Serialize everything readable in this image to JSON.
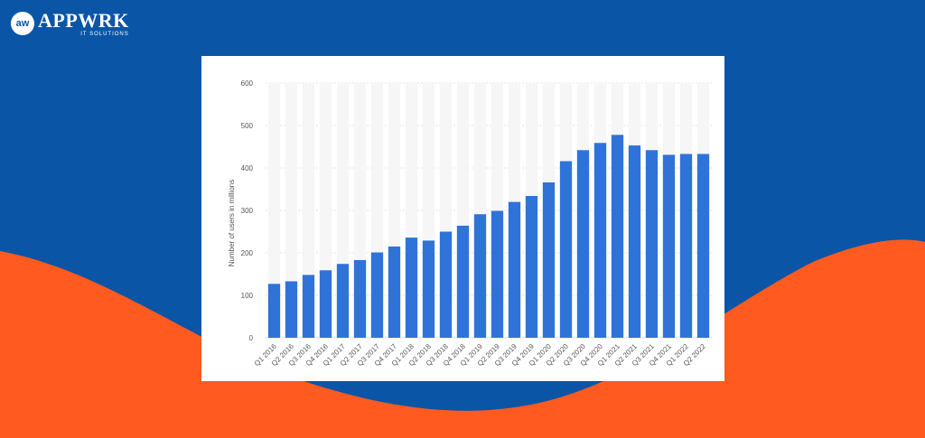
{
  "brand": {
    "badge": "aw",
    "name": "APPWRK",
    "tagline": "IT SOLUTIONS",
    "colors": {
      "background_blue": "#0a55a6",
      "wave_orange": "#ff5a1f"
    }
  },
  "chart_data": {
    "type": "bar",
    "title": "",
    "xlabel": "",
    "ylabel": "Number of users in millions",
    "ylim": [
      0,
      600
    ],
    "yticks": [
      0,
      100,
      200,
      300,
      400,
      500,
      600
    ],
    "grid": true,
    "bar_color": "#2f73d9",
    "categories": [
      "Q1 2016",
      "Q2 2016",
      "Q3 2016",
      "Q4 2016",
      "Q1 2017",
      "Q2 2017",
      "Q3 2017",
      "Q4 2017",
      "Q1 2018",
      "Q2 2018",
      "Q3 2018",
      "Q4 2018",
      "Q1 2019",
      "Q2 2019",
      "Q3 2019",
      "Q4 2019",
      "Q1 2020",
      "Q2 2020",
      "Q3 2020",
      "Q4 2020",
      "Q1 2021",
      "Q2 2021",
      "Q3 2021",
      "Q4 2021",
      "Q1 2022",
      "Q2 2022"
    ],
    "values": [
      127,
      133,
      148,
      159,
      174,
      183,
      201,
      215,
      236,
      229,
      250,
      264,
      291,
      299,
      320,
      334,
      366,
      416,
      442,
      459,
      478,
      453,
      442,
      431,
      433,
      433
    ]
  }
}
